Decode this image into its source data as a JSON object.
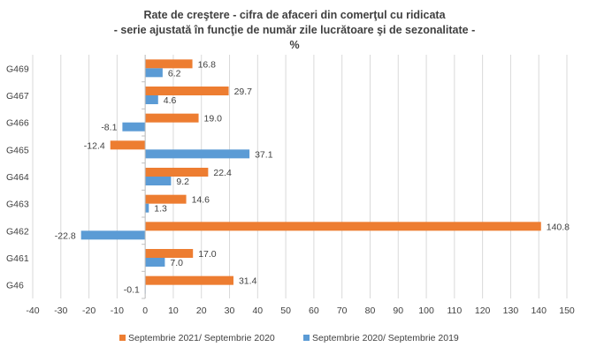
{
  "chart_data": {
    "type": "bar",
    "orientation": "horizontal",
    "title": [
      "Rate de creştere - cifra de afaceri din comerţul cu ridicata",
      "- serie ajustată în funcţie de număr zile lucrătoare şi de sezonalitate -",
      "%"
    ],
    "categories": [
      "G469",
      "G467",
      "G466",
      "G465",
      "G464",
      "G463",
      "G462",
      "G461",
      "G46"
    ],
    "series": [
      {
        "name": "Septembrie 2021/ Septembrie 2020",
        "color": "#ED7D31",
        "values": [
          16.8,
          29.7,
          19.0,
          -12.4,
          22.4,
          14.6,
          140.8,
          17.0,
          31.4
        ],
        "labels": [
          "16.8",
          "29.7",
          "19.0",
          "-12.4",
          "22.4",
          "14.6",
          "140.8",
          "17.0",
          "31.4"
        ]
      },
      {
        "name": "Septembrie 2020/ Septembrie 2019",
        "color": "#5B9BD5",
        "values": [
          6.2,
          4.6,
          -8.1,
          37.1,
          9.2,
          1.3,
          -22.8,
          7.0,
          -0.1
        ],
        "labels": [
          "6.2",
          "4.6",
          "-8.1",
          "37.1",
          "9.2",
          "1.3",
          "-22.8",
          "7.0",
          "-0.1"
        ]
      }
    ],
    "xlim": [
      -40,
      150
    ],
    "xticks": [
      -40,
      -30,
      -20,
      -10,
      0,
      10,
      20,
      30,
      40,
      50,
      60,
      70,
      80,
      90,
      100,
      110,
      120,
      130,
      140,
      150
    ],
    "grid": "vertical",
    "legend": "bottom"
  }
}
